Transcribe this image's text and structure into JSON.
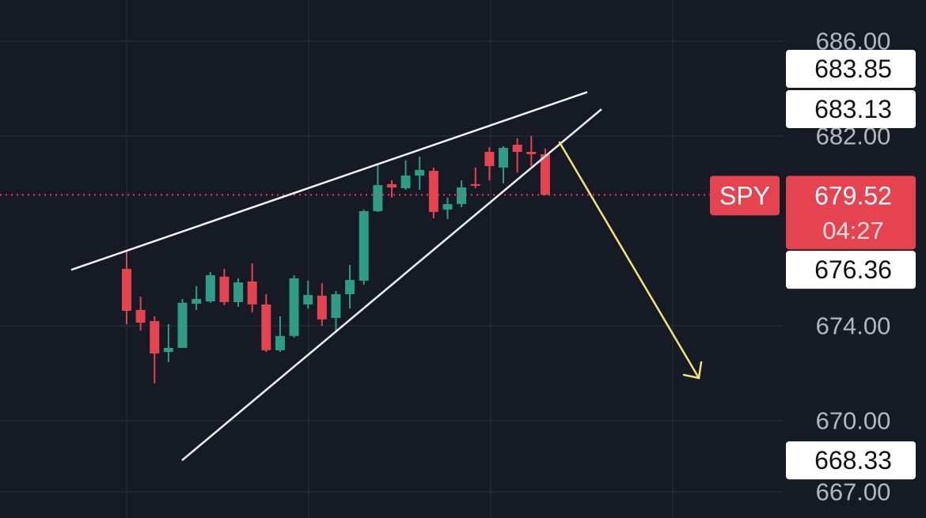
{
  "chart_data": {
    "type": "candlestick",
    "symbol": "SPY",
    "last_price": 679.52,
    "countdown": "04:27",
    "up_color": "#2f9c85",
    "down_color": "#e5434f",
    "open": [
      676.4,
      674.67,
      674.2,
      672.9,
      673.07,
      674.93,
      675.03,
      676.07,
      675.0,
      675.87,
      674.9,
      672.97,
      673.57,
      674.9,
      675.27,
      674.33,
      675.33,
      675.9,
      678.83,
      679.97,
      679.8,
      680.33,
      680.53,
      678.9,
      679.13,
      679.97,
      681.33,
      680.67,
      681.63,
      681.33,
      681.23
    ],
    "high": [
      677.13,
      675.23,
      674.4,
      674.07,
      675.13,
      675.67,
      676.27,
      676.4,
      676.0,
      676.63,
      675.33,
      674.4,
      676.13,
      675.9,
      675.8,
      675.47,
      676.57,
      678.9,
      680.8,
      680.13,
      680.97,
      681.13,
      680.67,
      679.4,
      680.13,
      680.67,
      681.53,
      681.57,
      681.9,
      682.0,
      681.47
    ],
    "low": [
      674.07,
      673.8,
      671.57,
      672.47,
      673.07,
      674.67,
      674.97,
      674.87,
      674.8,
      674.57,
      672.9,
      672.9,
      673.5,
      674.73,
      674.0,
      673.8,
      674.73,
      675.73,
      678.8,
      679.4,
      679.73,
      679.73,
      678.53,
      678.5,
      679.0,
      679.8,
      680.13,
      680.0,
      680.47,
      680.73,
      679.5
    ],
    "close": [
      674.63,
      674.13,
      672.83,
      673.07,
      674.97,
      675.13,
      676.13,
      675.0,
      675.83,
      674.9,
      672.97,
      673.57,
      676.0,
      675.3,
      674.27,
      675.33,
      675.93,
      678.83,
      679.93,
      679.83,
      680.33,
      680.57,
      678.8,
      679.13,
      679.83,
      679.9,
      680.73,
      681.5,
      681.33,
      681.23,
      679.52
    ],
    "trendlines": [
      {
        "start": 676.36,
        "end": 683.85
      },
      {
        "start": 668.33,
        "end": 683.13
      }
    ],
    "ylim": [
      665.9,
      687.73
    ],
    "yticks": [
      {
        "value": 686,
        "label": "686.00"
      },
      {
        "value": 682,
        "label": "682.00"
      },
      {
        "value": 674,
        "label": "674.00"
      },
      {
        "value": 670,
        "label": "670.00"
      },
      {
        "value": 667,
        "label": "667.00"
      }
    ],
    "grid": true
  }
}
